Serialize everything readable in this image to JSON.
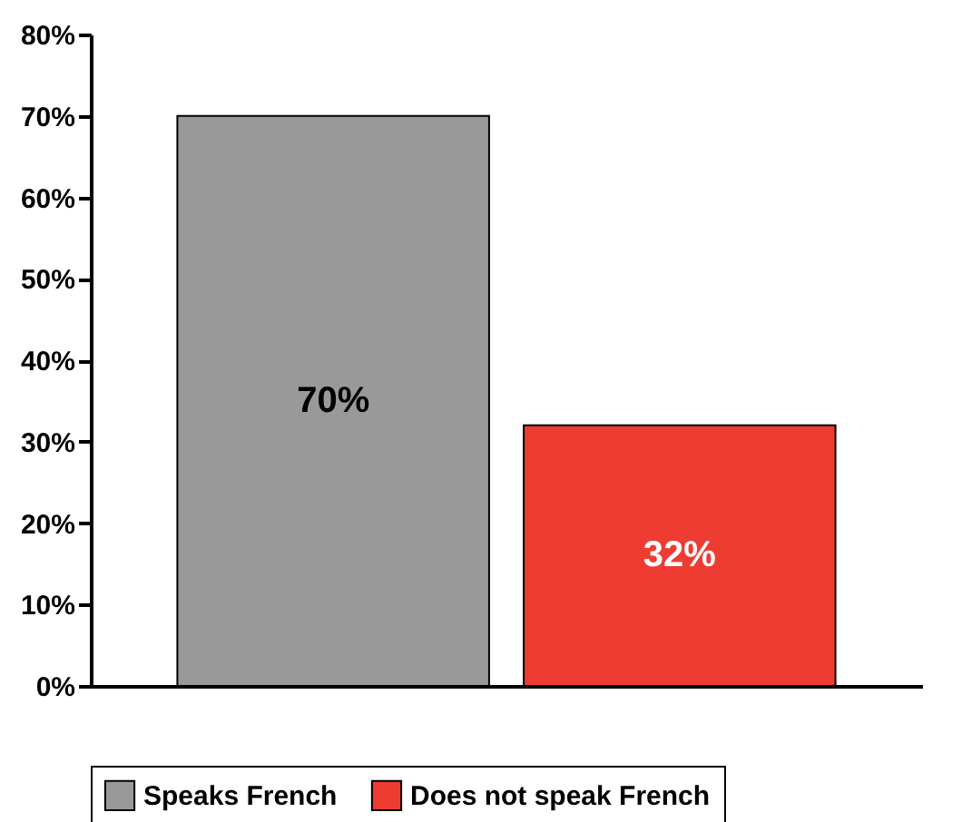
{
  "chart_data": {
    "type": "bar",
    "categories": [
      null,
      null
    ],
    "series": [
      {
        "name": "Speaks French",
        "color": "#999999",
        "values": [
          70,
          null
        ],
        "value_labels": [
          "70%",
          null
        ]
      },
      {
        "name": "Does not speak French",
        "color": "#ee3c33",
        "values": [
          null,
          32
        ],
        "value_labels": [
          null,
          "32%"
        ]
      }
    ],
    "ylim": [
      0,
      80
    ],
    "yticks": [
      {
        "value": 0,
        "label": "0%"
      },
      {
        "value": 10,
        "label": "10%"
      },
      {
        "value": 20,
        "label": "20%"
      },
      {
        "value": 30,
        "label": "30%"
      },
      {
        "value": 40,
        "label": "40%"
      },
      {
        "value": 50,
        "label": "50%"
      },
      {
        "value": 60,
        "label": "60%"
      },
      {
        "value": 70,
        "label": "70%"
      },
      {
        "value": 80,
        "label": "80%"
      }
    ],
    "tick_labels": "y",
    "grid": false,
    "legend": "bottom"
  }
}
